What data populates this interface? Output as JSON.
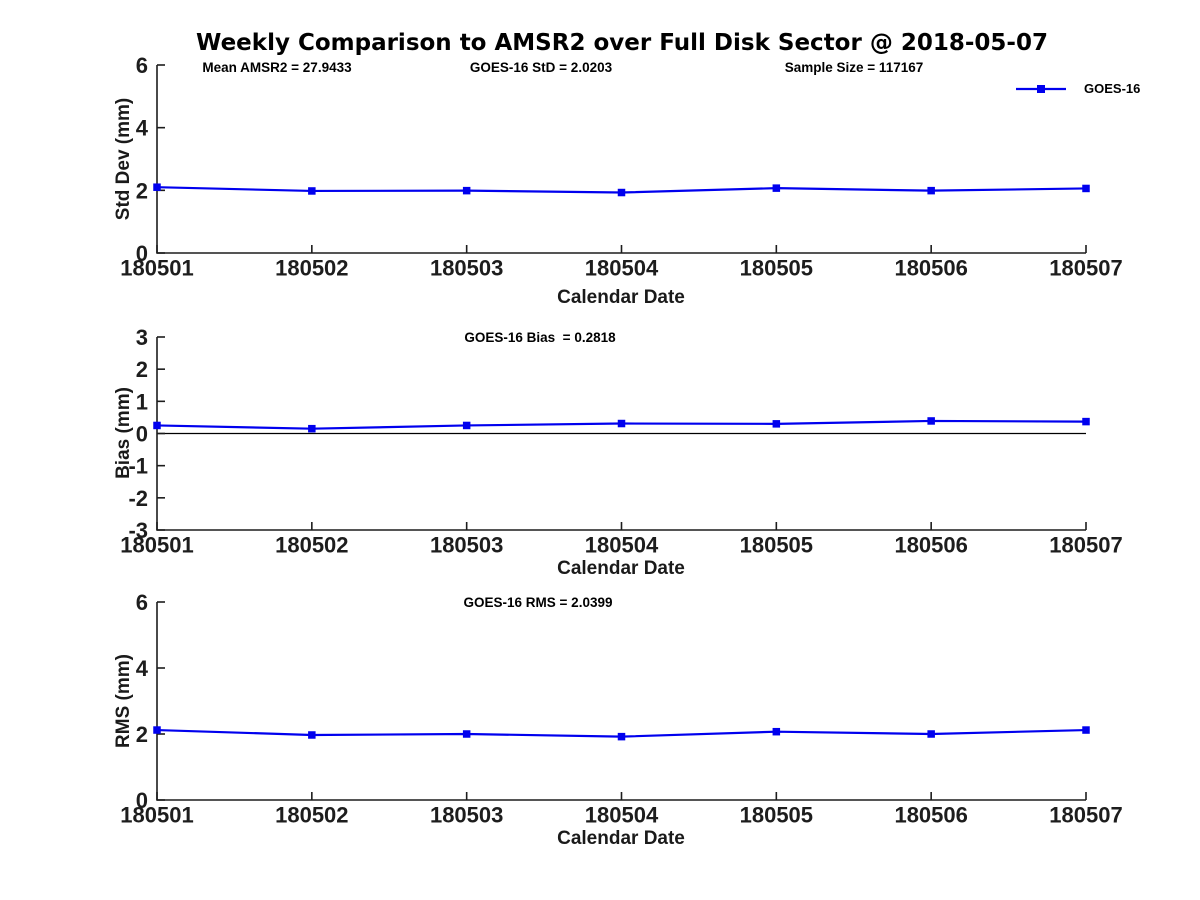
{
  "title": "Weekly Comparison to AMSR2 over Full Disk Sector @ 2018-05-07",
  "colors": {
    "series_line": "#0000EE",
    "axis": "#1d1d1d",
    "zero_line": "#000000",
    "text": "#1a1a1a"
  },
  "chart_data": [
    {
      "type": "line",
      "id": "stddev",
      "categories": [
        "180501",
        "180502",
        "180503",
        "180504",
        "180505",
        "180506",
        "180507"
      ],
      "series": [
        {
          "name": "GOES-16",
          "values": [
            2.1,
            1.98,
            1.99,
            1.93,
            2.07,
            1.99,
            2.06
          ]
        }
      ],
      "xlabel": "Calendar Date",
      "ylabel": "Std Dev (mm)",
      "ylim": [
        0,
        6
      ],
      "yticks": [
        0,
        2,
        4,
        6
      ],
      "grid": false,
      "marker": "square",
      "legend": {
        "label": "GOES-16",
        "position": "top-right"
      },
      "annotations": [
        {
          "text": "Mean AMSR2 = 27.9433"
        },
        {
          "text": "GOES-16 StD = 2.0203"
        },
        {
          "text": "Sample Size = 117167"
        }
      ]
    },
    {
      "type": "line",
      "id": "bias",
      "categories": [
        "180501",
        "180502",
        "180503",
        "180504",
        "180505",
        "180506",
        "180507"
      ],
      "series": [
        {
          "name": "GOES-16",
          "values": [
            0.25,
            0.15,
            0.25,
            0.31,
            0.3,
            0.39,
            0.37
          ]
        }
      ],
      "xlabel": "Calendar Date",
      "ylabel": "Bias (mm)",
      "ylim": [
        -3,
        3
      ],
      "yticks": [
        -3,
        -2,
        -1,
        0,
        1,
        2,
        3
      ],
      "grid": false,
      "marker": "square",
      "zero_line": true,
      "annotations": [
        {
          "text": "GOES-16 Bias  = 0.2818"
        }
      ]
    },
    {
      "type": "line",
      "id": "rms",
      "categories": [
        "180501",
        "180502",
        "180503",
        "180504",
        "180505",
        "180506",
        "180507"
      ],
      "series": [
        {
          "name": "GOES-16",
          "values": [
            2.12,
            1.97,
            2.0,
            1.92,
            2.07,
            2.0,
            2.12
          ]
        }
      ],
      "xlabel": "Calendar Date",
      "ylabel": "RMS (mm)",
      "ylim": [
        0,
        6
      ],
      "yticks": [
        0,
        2,
        4,
        6
      ],
      "grid": false,
      "marker": "square",
      "annotations": [
        {
          "text": "GOES-16 RMS = 2.0399"
        }
      ]
    }
  ]
}
